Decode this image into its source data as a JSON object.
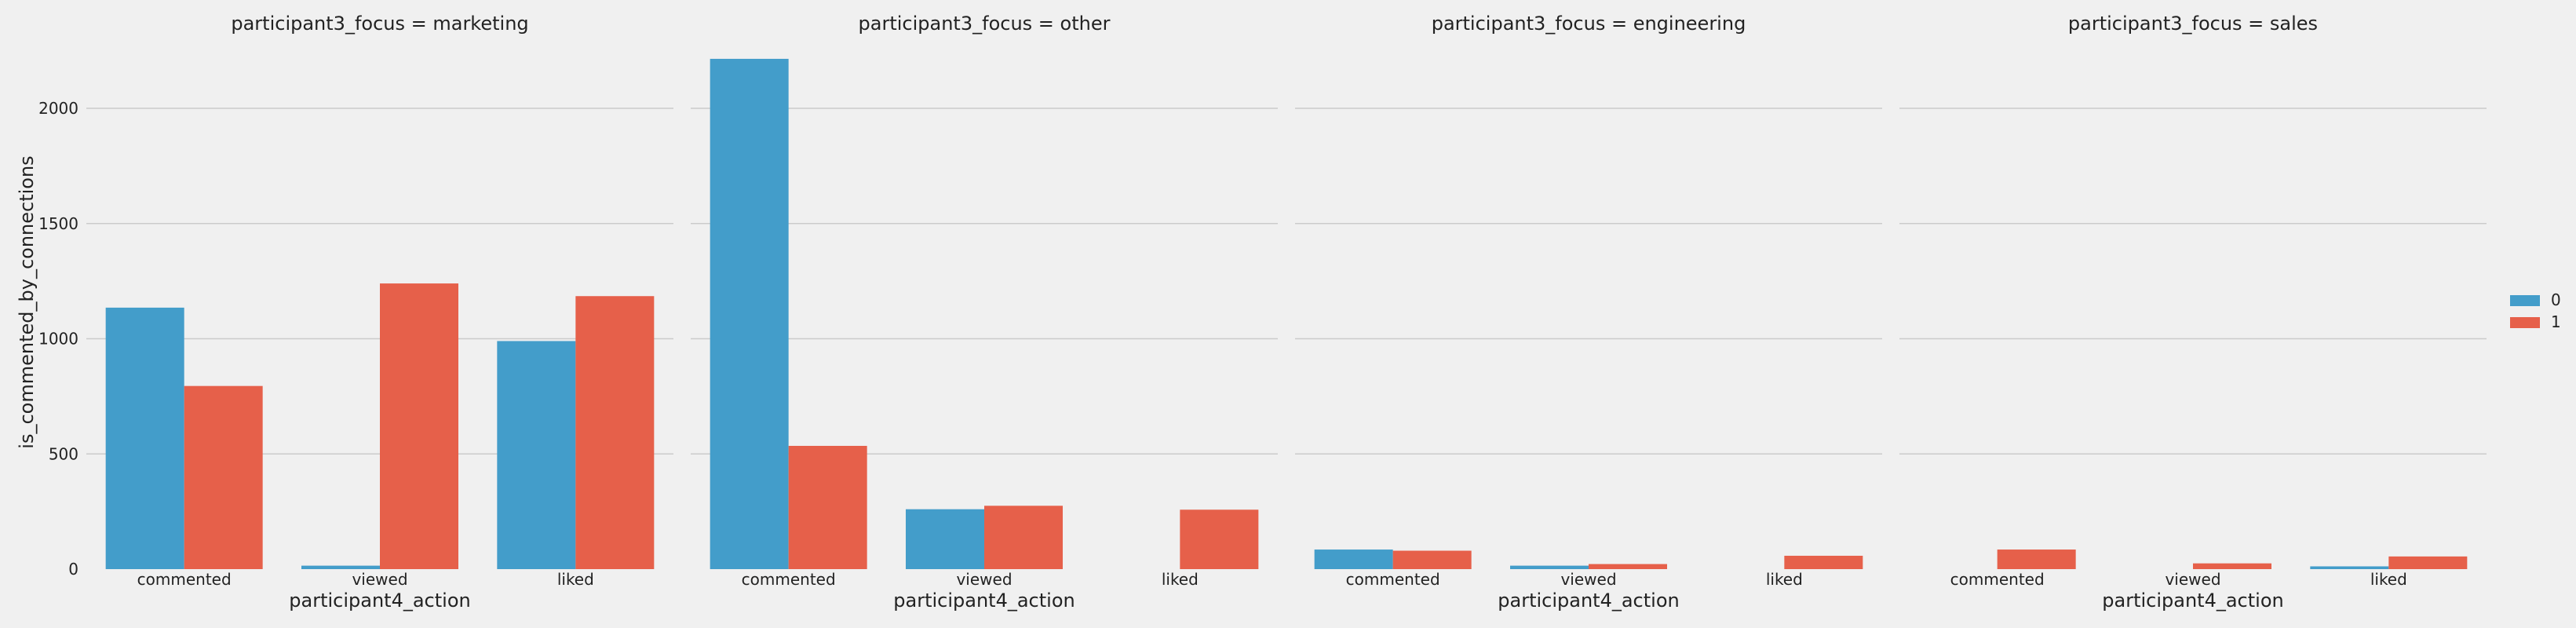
{
  "chart_data": {
    "type": "bar",
    "layout": "facet-grid",
    "facet_variable": "participant3_focus",
    "ylabel": "is_commented_by_connections",
    "xlabel": "participant4_action",
    "ylim": [
      0,
      2300
    ],
    "yticks": [
      "0",
      "500",
      "1000",
      "1500",
      "2000"
    ],
    "ytick_values": [
      0,
      500,
      1000,
      1500,
      2000
    ],
    "grid": true,
    "categories": [
      "commented",
      "viewed",
      "liked"
    ],
    "legend": {
      "position": "right",
      "entries": [
        {
          "label": "0",
          "color": "#439dca"
        },
        {
          "label": "1",
          "color": "#e6604a"
        }
      ]
    },
    "panels": [
      {
        "title": "participant3_focus = marketing",
        "series": [
          {
            "name": "0",
            "values": [
              1135,
              15,
              990
            ]
          },
          {
            "name": "1",
            "values": [
              795,
              1240,
              1185
            ]
          }
        ]
      },
      {
        "title": "participant3_focus = other",
        "series": [
          {
            "name": "0",
            "values": [
              2215,
              260,
              0
            ]
          },
          {
            "name": "1",
            "values": [
              535,
              275,
              258
            ]
          }
        ]
      },
      {
        "title": "participant3_focus = engineering",
        "series": [
          {
            "name": "0",
            "values": [
              85,
              15,
              0
            ]
          },
          {
            "name": "1",
            "values": [
              80,
              22,
              58
            ]
          }
        ]
      },
      {
        "title": "participant3_focus = sales",
        "series": [
          {
            "name": "0",
            "values": [
              0,
              0,
              12
            ]
          },
          {
            "name": "1",
            "values": [
              85,
              25,
              55
            ]
          }
        ]
      }
    ]
  }
}
